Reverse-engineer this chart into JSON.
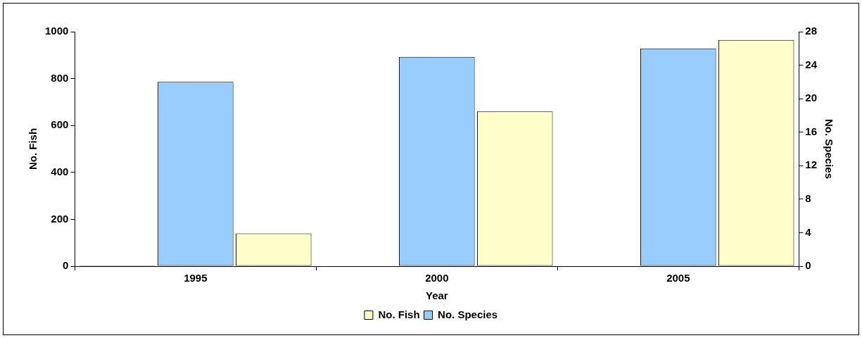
{
  "chart_data": {
    "type": "bar",
    "xlabel": "Year",
    "ylabel": "No. Fish",
    "y2label": "No. Species",
    "categories": [
      "1995",
      "2000",
      "2005"
    ],
    "series": [
      {
        "color": "#000000",
        "values": [
          0,
          null,
          null
        ]
      },
      {
        "name": "No. Species",
        "color": "#99ccff",
        "axis": "y2",
        "values": [
          22,
          25,
          26
        ]
      },
      {
        "name": "No. Fish",
        "color": "#ffffcc",
        "values": [
          140,
          660,
          965
        ]
      }
    ],
    "ylim": [
      0,
      1000
    ],
    "yticks": [
      0,
      200,
      400,
      600,
      800,
      1000
    ],
    "y2lim": [
      0,
      28
    ],
    "y2ticks": [
      0,
      4,
      8,
      12,
      16,
      20,
      24,
      28
    ],
    "grid": false,
    "legend": "bottom"
  }
}
